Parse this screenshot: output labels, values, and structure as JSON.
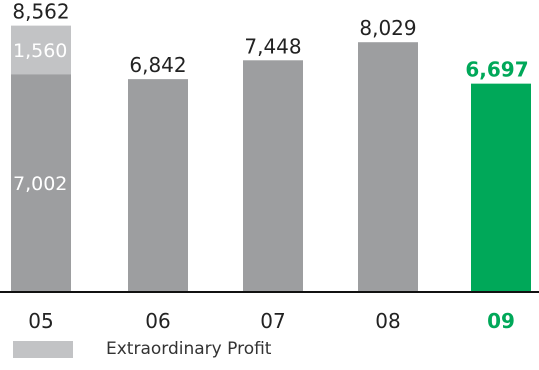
{
  "chart_data": {
    "type": "bar",
    "categories": [
      "05",
      "06",
      "07",
      "08",
      "09"
    ],
    "series": [
      {
        "values": [
          7002,
          6842,
          7448,
          8029,
          6697
        ]
      },
      {
        "name": "Extraordinary Profit",
        "values": [
          1560,
          0,
          0,
          0,
          0
        ]
      }
    ],
    "totals": [
      "8,562",
      "6,842",
      "7,448",
      "8,029",
      "6,697"
    ],
    "segment_labels": [
      "1,560",
      "7,002"
    ],
    "stacked": true,
    "highlight_category": "09",
    "ylim": [
      0,
      9000
    ],
    "grid": false,
    "legend": "bottom-left",
    "colors": {
      "base": "#9d9e a0",
      "extraordinary": "#c2c3c5",
      "highlight": "#00a859",
      "label_dark": "#222222",
      "label_light": "#ffffff"
    }
  }
}
